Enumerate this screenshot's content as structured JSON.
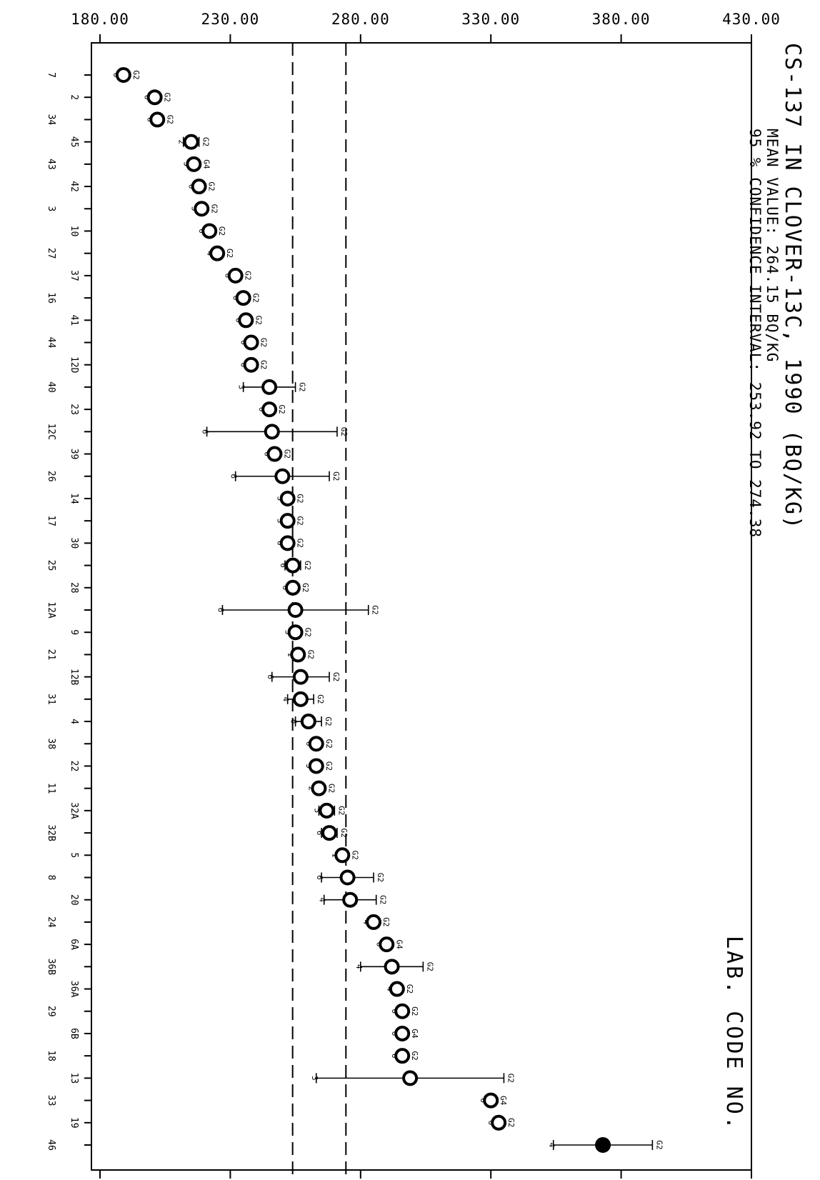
{
  "chart_data": {
    "type": "scatter",
    "title": "CS-137 IN CLOVER-13C, 1990 (BQ/KG)",
    "mean_label": "MEAN VALUE:  264.15 BQ/KG",
    "ci_label": "95 % CONFIDENCE INTERVAL: 253.92 TO 274.38",
    "xlabel": "LAB. CODE NO.",
    "value_axis": {
      "min": 180,
      "max": 430,
      "ticks": [
        "180.00",
        "230.00",
        "280.00",
        "330.00",
        "380.00",
        "430.00"
      ]
    },
    "mean": 264.15,
    "ci": [
      253.92,
      274.38
    ],
    "points": [
      {
        "lab": "7",
        "value": 189,
        "err": null,
        "ann_lo": "6",
        "ann_hi": "G2",
        "filled": false
      },
      {
        "lab": "2",
        "value": 201,
        "err": null,
        "ann_lo": "6",
        "ann_hi": "G2",
        "filled": false
      },
      {
        "lab": "34",
        "value": 202,
        "err": null,
        "ann_lo": "6",
        "ann_hi": "G2",
        "filled": false
      },
      {
        "lab": "45",
        "value": 215,
        "err": 3,
        "ann_lo": "2",
        "ann_hi": "G2",
        "filled": false
      },
      {
        "lab": "43",
        "value": 216,
        "err": null,
        "ann_lo": "5",
        "ann_hi": "G4",
        "filled": false
      },
      {
        "lab": "42",
        "value": 218,
        "err": null,
        "ann_lo": "6",
        "ann_hi": "G2",
        "filled": false
      },
      {
        "lab": "3",
        "value": 219,
        "err": null,
        "ann_lo": "3",
        "ann_hi": "G2",
        "filled": false
      },
      {
        "lab": "10",
        "value": 222,
        "err": null,
        "ann_lo": "6",
        "ann_hi": "G2",
        "filled": false
      },
      {
        "lab": "27",
        "value": 225,
        "err": null,
        "ann_lo": "4",
        "ann_hi": "G2",
        "filled": false
      },
      {
        "lab": "37",
        "value": 232,
        "err": null,
        "ann_lo": "6",
        "ann_hi": "G2",
        "filled": false
      },
      {
        "lab": "16",
        "value": 235,
        "err": null,
        "ann_lo": "6",
        "ann_hi": "G2",
        "filled": false
      },
      {
        "lab": "41",
        "value": 236,
        "err": null,
        "ann_lo": "6",
        "ann_hi": "G2",
        "filled": false
      },
      {
        "lab": "44",
        "value": 238,
        "err": null,
        "ann_lo": "6",
        "ann_hi": "G2",
        "filled": false
      },
      {
        "lab": "12D",
        "value": 238,
        "err": null,
        "ann_lo": "6",
        "ann_hi": "G2",
        "filled": false
      },
      {
        "lab": "40",
        "value": 245,
        "err": 10,
        "ann_lo": "3",
        "ann_hi": "G2",
        "filled": false
      },
      {
        "lab": "23",
        "value": 245,
        "err": null,
        "ann_lo": "6",
        "ann_hi": "G2",
        "filled": false
      },
      {
        "lab": "12C",
        "value": 246,
        "err": 25,
        "ann_lo": "6",
        "ann_hi": "G2",
        "filled": false
      },
      {
        "lab": "39",
        "value": 247,
        "err": null,
        "ann_lo": "6",
        "ann_hi": "G2",
        "filled": false
      },
      {
        "lab": "26",
        "value": 250,
        "err": 18,
        "ann_lo": "6",
        "ann_hi": "G2",
        "filled": false
      },
      {
        "lab": "14",
        "value": 252,
        "err": null,
        "ann_lo": "5",
        "ann_hi": "G2",
        "filled": false
      },
      {
        "lab": "17",
        "value": 252,
        "err": null,
        "ann_lo": "3",
        "ann_hi": "G2",
        "filled": false
      },
      {
        "lab": "30",
        "value": 252,
        "err": null,
        "ann_lo": "6",
        "ann_hi": "G2",
        "filled": false
      },
      {
        "lab": "25",
        "value": 254,
        "err": 3,
        "ann_lo": "6",
        "ann_hi": "G2",
        "filled": false
      },
      {
        "lab": "28",
        "value": 254,
        "err": null,
        "ann_lo": "6",
        "ann_hi": "G2",
        "filled": false
      },
      {
        "lab": "12A",
        "value": 255,
        "err": 28,
        "ann_lo": "6",
        "ann_hi": "G2",
        "filled": false
      },
      {
        "lab": "9",
        "value": 255,
        "err": null,
        "ann_lo": "3",
        "ann_hi": "G2",
        "filled": false
      },
      {
        "lab": "21",
        "value": 256,
        "err": null,
        "ann_lo": "1",
        "ann_hi": "G2",
        "filled": false
      },
      {
        "lab": "12B",
        "value": 257,
        "err": 11,
        "ann_lo": "6",
        "ann_hi": "G2",
        "filled": false
      },
      {
        "lab": "31",
        "value": 257,
        "err": 5,
        "ann_lo": "4",
        "ann_hi": "G2",
        "filled": false
      },
      {
        "lab": "4",
        "value": 260,
        "err": 5,
        "ann_lo": "6",
        "ann_hi": "G2",
        "filled": false
      },
      {
        "lab": "38",
        "value": 263,
        "err": null,
        "ann_lo": "6",
        "ann_hi": "G2",
        "filled": false
      },
      {
        "lab": "22",
        "value": 263,
        "err": null,
        "ann_lo": "3",
        "ann_hi": "G2",
        "filled": false
      },
      {
        "lab": "11",
        "value": 264,
        "err": null,
        "ann_lo": "2",
        "ann_hi": "G2",
        "filled": false
      },
      {
        "lab": "32A",
        "value": 267,
        "err": 3,
        "ann_lo": "5",
        "ann_hi": "G2",
        "filled": false
      },
      {
        "lab": "32B",
        "value": 268,
        "err": 3,
        "ann_lo": "6",
        "ann_hi": "G2",
        "filled": false
      },
      {
        "lab": "5",
        "value": 273,
        "err": null,
        "ann_lo": "1",
        "ann_hi": "G2",
        "filled": false
      },
      {
        "lab": "8",
        "value": 275,
        "err": 10,
        "ann_lo": "6",
        "ann_hi": "G2",
        "filled": false
      },
      {
        "lab": "20",
        "value": 276,
        "err": 10,
        "ann_lo": "4",
        "ann_hi": "G2",
        "filled": false
      },
      {
        "lab": "24",
        "value": 285,
        "err": null,
        "ann_lo": "4",
        "ann_hi": "G2",
        "filled": false
      },
      {
        "lab": "6A",
        "value": 290,
        "err": null,
        "ann_lo": "6",
        "ann_hi": "G4",
        "filled": false
      },
      {
        "lab": "36B",
        "value": 292,
        "err": 12,
        "ann_lo": "4",
        "ann_hi": "G2",
        "filled": false
      },
      {
        "lab": "36A",
        "value": 294,
        "err": null,
        "ann_lo": "4",
        "ann_hi": "G2",
        "filled": false
      },
      {
        "lab": "29",
        "value": 296,
        "err": null,
        "ann_lo": "6",
        "ann_hi": "G2",
        "filled": false
      },
      {
        "lab": "6B",
        "value": 296,
        "err": null,
        "ann_lo": "6",
        "ann_hi": "G4",
        "filled": false
      },
      {
        "lab": "18",
        "value": 296,
        "err": null,
        "ann_lo": "6",
        "ann_hi": "G2",
        "filled": false
      },
      {
        "lab": "13",
        "value": 299,
        "err": 36,
        "ann_lo": "3",
        "ann_hi": "G2",
        "filled": false
      },
      {
        "lab": "33",
        "value": 330,
        "err": null,
        "ann_lo": "6",
        "ann_hi": "G4",
        "filled": false
      },
      {
        "lab": "19",
        "value": 333,
        "err": null,
        "ann_lo": "6",
        "ann_hi": "G2",
        "filled": false
      },
      {
        "lab": "46",
        "value": 373,
        "err": 19,
        "ann_lo": "4",
        "ann_hi": "G2",
        "filled": true
      }
    ],
    "grid": false,
    "legend": "none"
  }
}
